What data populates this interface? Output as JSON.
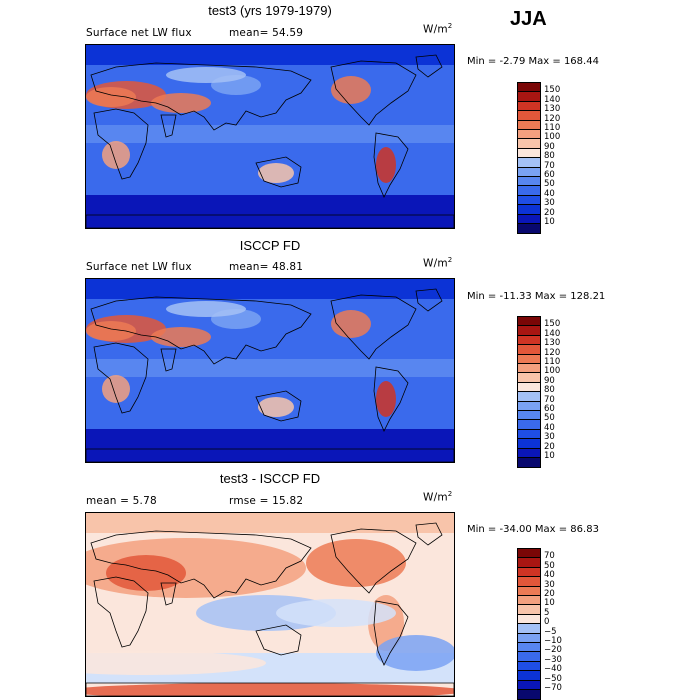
{
  "season": "JJA",
  "units": "W/m",
  "units_sup": "2",
  "panels": [
    {
      "title": "test3 (yrs 1979-1979)",
      "left_label": "Surface net LW flux",
      "right_label": "mean=  54.59",
      "minmax": "Min =  -2.79 Max = 168.44",
      "palette": [
        "#08086e",
        "#0a16b8",
        "#0c33d6",
        "#1f4ee6",
        "#3a6aec",
        "#5886f0",
        "#7aa2f3",
        "#a4c1f6",
        "#d3e2fa",
        "#fbe6dc",
        "#f8c4aa",
        "#f3a07f",
        "#ec7a55",
        "#e2573a",
        "#cf3424",
        "#a81612",
        "#7a0606"
      ],
      "ticks": [
        "150",
        "140",
        "130",
        "120",
        "110",
        "100",
        "90",
        "80",
        "70",
        "60",
        "50",
        "40",
        "30",
        "20",
        "10"
      ],
      "base": "cool"
    },
    {
      "title": "ISCCP FD",
      "left_label": "Surface net LW flux",
      "right_label": "mean=  48.81",
      "minmax": "Min = -11.33 Max = 128.21",
      "palette": [
        "#08086e",
        "#0a16b8",
        "#0c33d6",
        "#1f4ee6",
        "#3a6aec",
        "#5886f0",
        "#7aa2f3",
        "#a4c1f6",
        "#d3e2fa",
        "#fbe6dc",
        "#f8c4aa",
        "#f3a07f",
        "#ec7a55",
        "#e2573a",
        "#cf3424",
        "#a81612",
        "#7a0606"
      ],
      "ticks": [
        "150",
        "140",
        "130",
        "120",
        "110",
        "100",
        "90",
        "80",
        "70",
        "60",
        "50",
        "40",
        "30",
        "20",
        "10"
      ],
      "base": "cool"
    },
    {
      "title": "test3 - ISCCP FD",
      "left_label": "mean =   5.78",
      "right_label": "rmse =  15.82",
      "minmax": "Min = -34.00 Max =  86.83",
      "palette": [
        "#08086e",
        "#0a16b8",
        "#0c33d6",
        "#1f4ee6",
        "#3a6aec",
        "#5886f0",
        "#7aa2f3",
        "#a4c1f6",
        "#d3e2fa",
        "#fbe6dc",
        "#f8c4aa",
        "#f3a07f",
        "#ec7a55",
        "#e2573a",
        "#cf3424",
        "#a81612",
        "#7a0606"
      ],
      "ticks": [
        "70",
        "50",
        "40",
        "30",
        "20",
        "10",
        "5",
        "0",
        "−5",
        "−10",
        "−20",
        "−30",
        "−40",
        "−50",
        "−70"
      ],
      "base": "warm"
    }
  ]
}
